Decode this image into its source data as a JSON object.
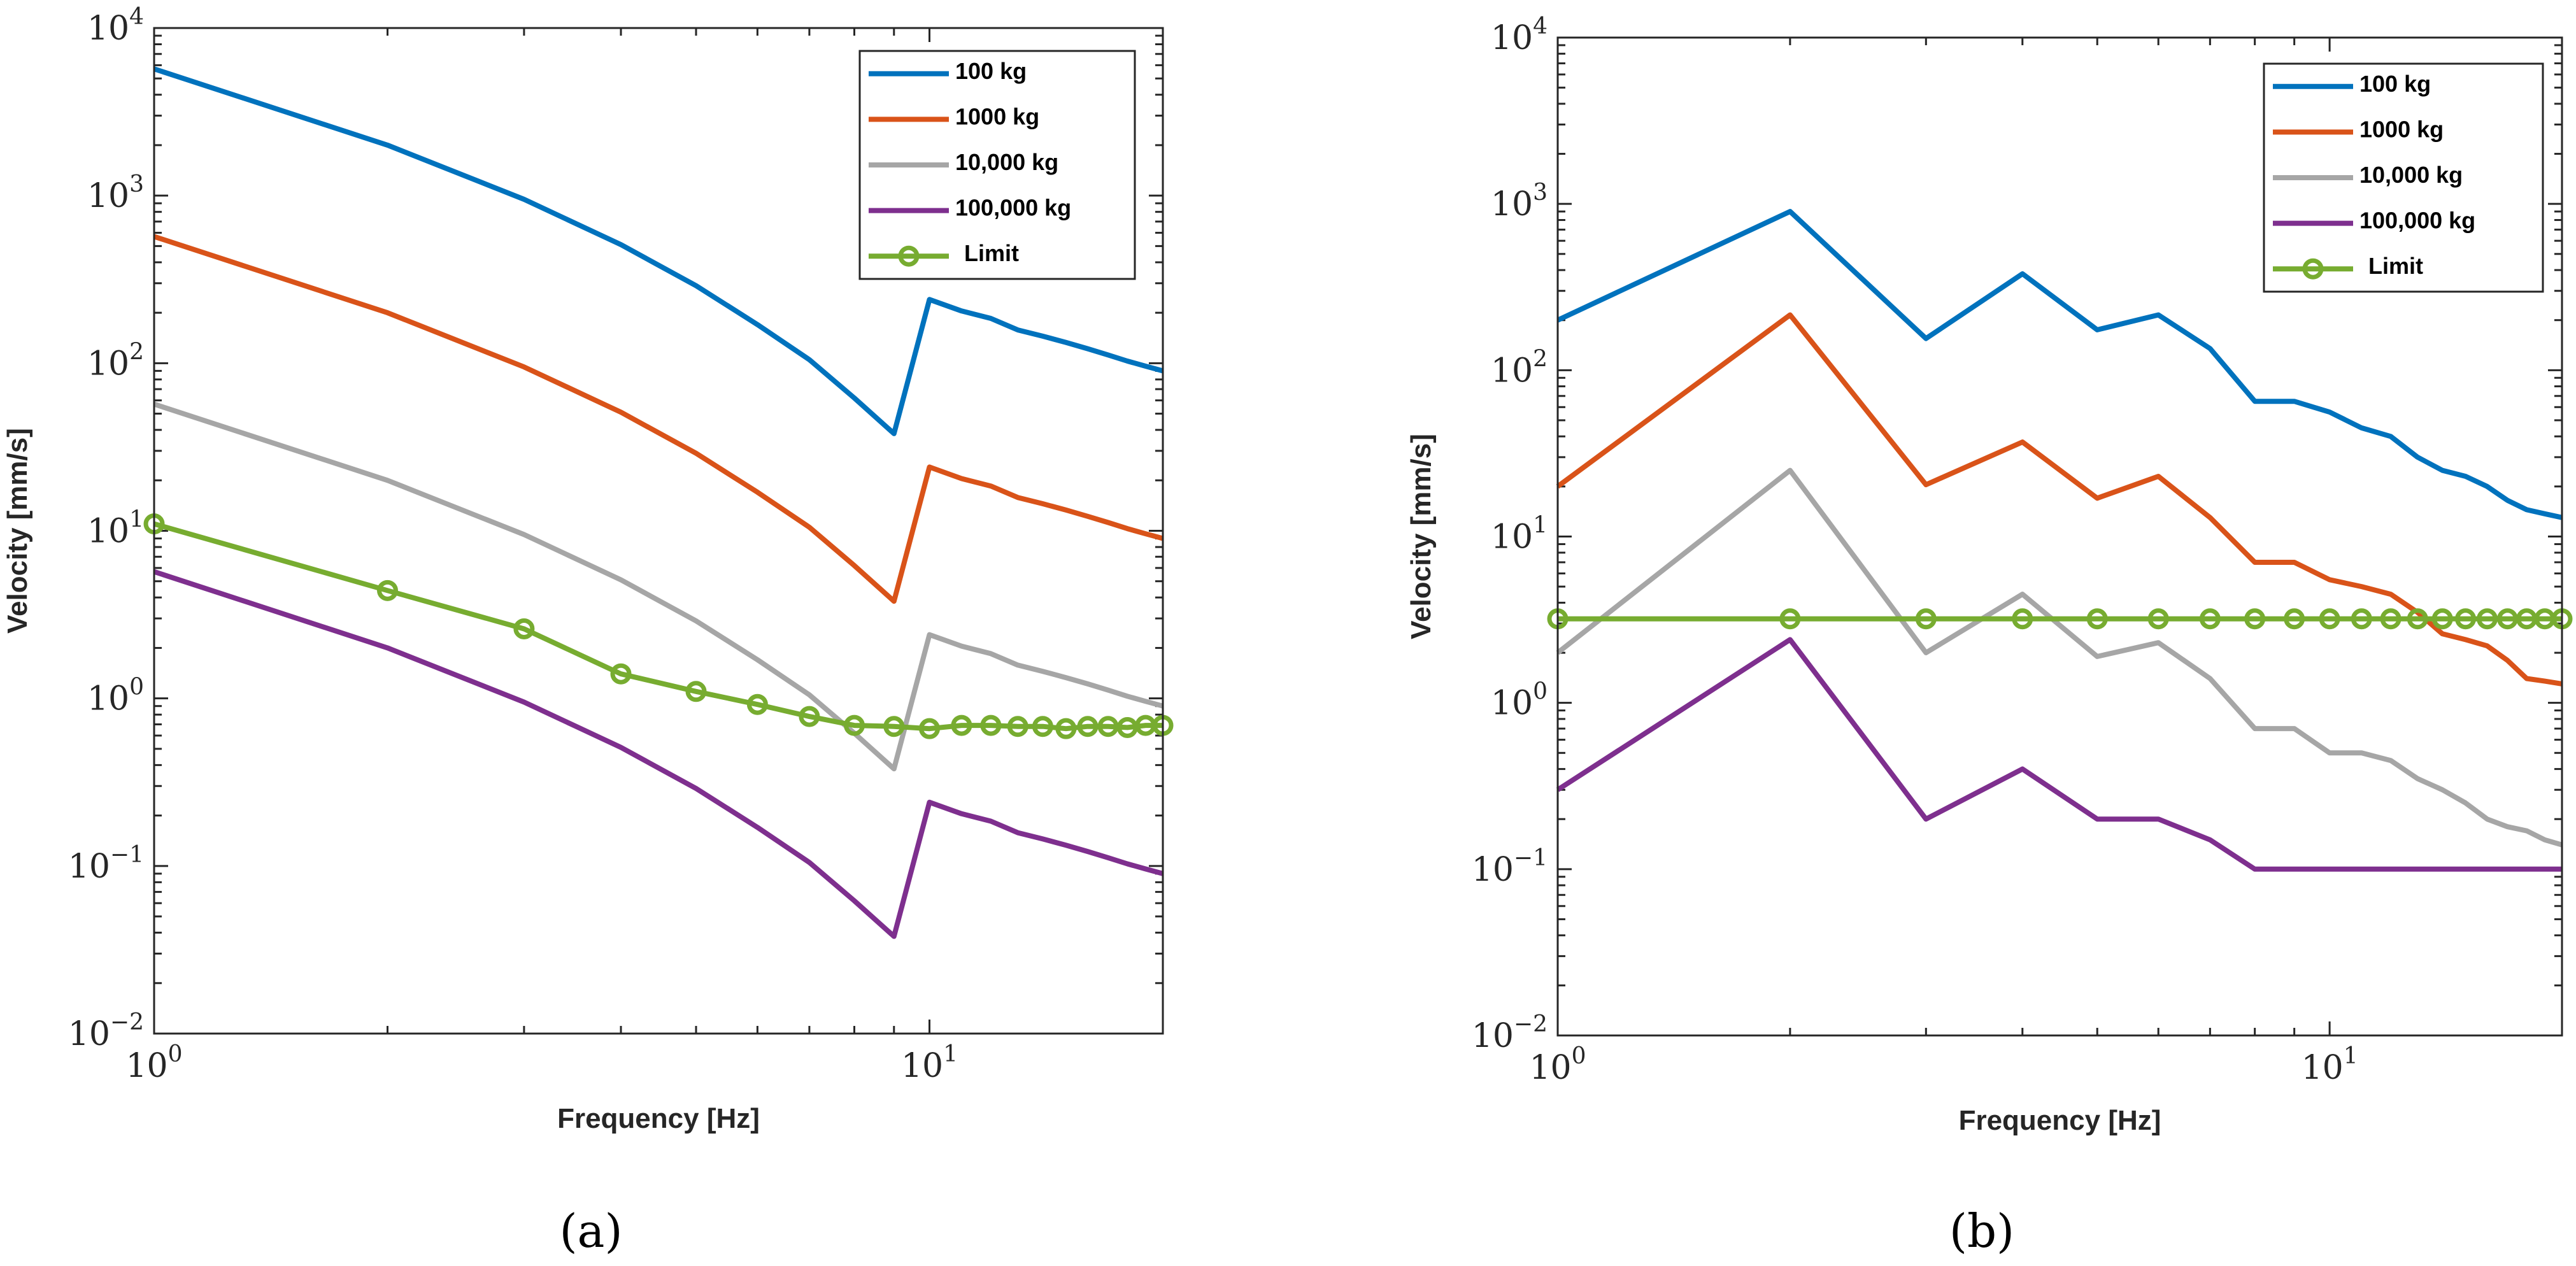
{
  "colors": {
    "s100": "#0072BD",
    "s1000": "#D95319",
    "s10000": "#A6A6A6",
    "s100000": "#7E2F8E",
    "limit": "#77AC30",
    "axis": "#262626",
    "background": "#ffffff"
  },
  "chart_data": [
    {
      "type": "line",
      "panel_label": "(a)",
      "xscale": "log",
      "yscale": "log",
      "xlabel": "Frequency [Hz]",
      "ylabel": "Velocity [mm/s]",
      "xlim": [
        1,
        20
      ],
      "ylim": [
        0.01,
        10000
      ],
      "x_ticks": [
        {
          "value": 1,
          "base": "10",
          "exp": "0"
        },
        {
          "value": 10,
          "base": "10",
          "exp": "1"
        }
      ],
      "y_ticks": [
        {
          "value": 0.01,
          "base": "10",
          "exp": "−2"
        },
        {
          "value": 0.1,
          "base": "10",
          "exp": "−1"
        },
        {
          "value": 1,
          "base": "10",
          "exp": "0"
        },
        {
          "value": 10,
          "base": "10",
          "exp": "1"
        },
        {
          "value": 100,
          "base": "10",
          "exp": "2"
        },
        {
          "value": 1000,
          "base": "10",
          "exp": "3"
        },
        {
          "value": 10000,
          "base": "10",
          "exp": "4"
        }
      ],
      "legend_position": "top-right",
      "series": [
        {
          "name": "100 kg",
          "color_key": "s100",
          "markers": false,
          "x": [
            1,
            2,
            3,
            4,
            5,
            6,
            7,
            8,
            9,
            10,
            11,
            12,
            13,
            14,
            15,
            16,
            17,
            18,
            19,
            20
          ],
          "y": [
            5700,
            2000,
            950,
            510,
            290,
            170,
            105,
            62,
            38,
            240,
            205,
            185,
            158,
            145,
            133,
            122,
            112,
            103,
            96,
            90
          ]
        },
        {
          "name": "1000 kg",
          "color_key": "s1000",
          "markers": false,
          "x": [
            1,
            2,
            3,
            4,
            5,
            6,
            7,
            8,
            9,
            10,
            11,
            12,
            13,
            14,
            15,
            16,
            17,
            18,
            19,
            20
          ],
          "y": [
            570,
            200,
            95,
            51,
            29,
            17,
            10.5,
            6.2,
            3.8,
            24,
            20.5,
            18.5,
            15.8,
            14.5,
            13.3,
            12.2,
            11.2,
            10.3,
            9.6,
            9.0
          ]
        },
        {
          "name": "10,000 kg",
          "color_key": "s10000",
          "markers": false,
          "x": [
            1,
            2,
            3,
            4,
            5,
            6,
            7,
            8,
            9,
            10,
            11,
            12,
            13,
            14,
            15,
            16,
            17,
            18,
            19,
            20
          ],
          "y": [
            57,
            20,
            9.5,
            5.1,
            2.9,
            1.7,
            1.05,
            0.62,
            0.38,
            2.4,
            2.05,
            1.85,
            1.58,
            1.45,
            1.33,
            1.22,
            1.12,
            1.03,
            0.96,
            0.9
          ]
        },
        {
          "name": "100,000 kg",
          "color_key": "s100000",
          "markers": false,
          "x": [
            1,
            2,
            3,
            4,
            5,
            6,
            7,
            8,
            9,
            10,
            11,
            12,
            13,
            14,
            15,
            16,
            17,
            18,
            19,
            20
          ],
          "y": [
            5.7,
            2.0,
            0.95,
            0.51,
            0.29,
            0.17,
            0.105,
            0.062,
            0.038,
            0.24,
            0.205,
            0.185,
            0.158,
            0.145,
            0.133,
            0.122,
            0.112,
            0.103,
            0.096,
            0.09
          ]
        },
        {
          "name": "Limit",
          "color_key": "limit",
          "markers": true,
          "x": [
            1,
            2,
            3,
            4,
            5,
            6,
            7,
            8,
            9,
            10,
            11,
            12,
            13,
            14,
            15,
            16,
            17,
            18,
            19,
            20
          ],
          "y": [
            11,
            4.4,
            2.6,
            1.4,
            1.1,
            0.92,
            0.78,
            0.69,
            0.68,
            0.66,
            0.69,
            0.69,
            0.68,
            0.68,
            0.66,
            0.68,
            0.68,
            0.67,
            0.69,
            0.69
          ]
        }
      ]
    },
    {
      "type": "line",
      "panel_label": "(b)",
      "xscale": "log",
      "yscale": "log",
      "xlabel": "Frequency [Hz]",
      "ylabel": "Velocity [mm/s]",
      "xlim": [
        1,
        20
      ],
      "ylim": [
        0.01,
        10000
      ],
      "x_ticks": [
        {
          "value": 1,
          "base": "10",
          "exp": "0"
        },
        {
          "value": 10,
          "base": "10",
          "exp": "1"
        }
      ],
      "y_ticks": [
        {
          "value": 0.01,
          "base": "10",
          "exp": "−2"
        },
        {
          "value": 0.1,
          "base": "10",
          "exp": "−1"
        },
        {
          "value": 1,
          "base": "10",
          "exp": "0"
        },
        {
          "value": 10,
          "base": "10",
          "exp": "1"
        },
        {
          "value": 100,
          "base": "10",
          "exp": "2"
        },
        {
          "value": 1000,
          "base": "10",
          "exp": "3"
        },
        {
          "value": 10000,
          "base": "10",
          "exp": "4"
        }
      ],
      "legend_position": "top-right",
      "series": [
        {
          "name": "100 kg",
          "color_key": "s100",
          "markers": false,
          "x": [
            1,
            2,
            3,
            4,
            5,
            6,
            7,
            8,
            9,
            10,
            11,
            12,
            13,
            14,
            15,
            16,
            17,
            18,
            19,
            20
          ],
          "y": [
            200,
            900,
            155,
            380,
            175,
            215,
            135,
            65,
            65,
            56,
            45,
            40,
            30,
            25,
            23,
            20,
            16.5,
            14.5,
            13.7,
            13
          ]
        },
        {
          "name": "1000 kg",
          "color_key": "s1000",
          "markers": false,
          "x": [
            1,
            2,
            3,
            4,
            5,
            6,
            7,
            8,
            9,
            10,
            11,
            12,
            13,
            14,
            15,
            16,
            17,
            18,
            19,
            20
          ],
          "y": [
            20,
            215,
            20.5,
            37,
            17,
            23,
            13,
            7,
            7,
            5.5,
            5,
            4.5,
            3.5,
            2.6,
            2.4,
            2.2,
            1.8,
            1.4,
            1.35,
            1.3
          ]
        },
        {
          "name": "10,000 kg",
          "color_key": "s10000",
          "markers": false,
          "x": [
            1,
            2,
            3,
            4,
            5,
            6,
            7,
            8,
            9,
            10,
            11,
            12,
            13,
            14,
            15,
            16,
            17,
            18,
            19,
            20
          ],
          "y": [
            2,
            25,
            2,
            4.5,
            1.9,
            2.3,
            1.4,
            0.7,
            0.7,
            0.5,
            0.5,
            0.45,
            0.35,
            0.3,
            0.25,
            0.2,
            0.18,
            0.17,
            0.15,
            0.14
          ]
        },
        {
          "name": "100,000 kg",
          "color_key": "s100000",
          "markers": false,
          "x": [
            1,
            2,
            3,
            4,
            5,
            6,
            7,
            8,
            9,
            10,
            11,
            12,
            13,
            14,
            15,
            16,
            17,
            18,
            19,
            20
          ],
          "y": [
            0.3,
            2.4,
            0.2,
            0.4,
            0.2,
            0.2,
            0.15,
            0.1,
            0.1,
            0.1,
            0.1,
            0.1,
            0.1,
            0.1,
            0.1,
            0.1,
            0.1,
            0.1,
            0.1,
            0.1
          ]
        },
        {
          "name": "Limit",
          "color_key": "limit",
          "markers": true,
          "x": [
            1,
            2,
            3,
            4,
            5,
            6,
            7,
            8,
            9,
            10,
            11,
            12,
            13,
            14,
            15,
            16,
            17,
            18,
            19,
            20
          ],
          "y": [
            3.2,
            3.2,
            3.2,
            3.2,
            3.2,
            3.2,
            3.2,
            3.2,
            3.2,
            3.2,
            3.2,
            3.2,
            3.2,
            3.2,
            3.2,
            3.2,
            3.2,
            3.2,
            3.2,
            3.2
          ]
        }
      ]
    }
  ]
}
